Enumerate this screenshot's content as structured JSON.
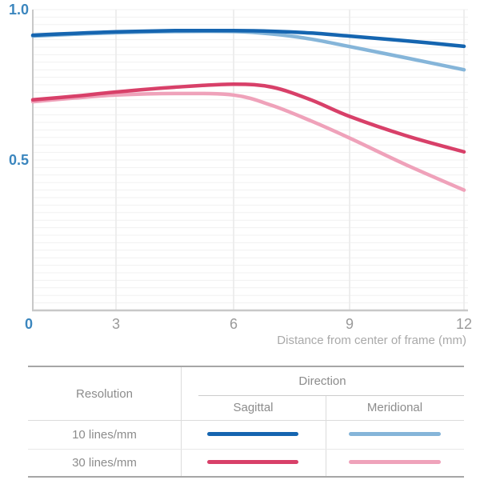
{
  "chart_data": {
    "type": "line",
    "xlabel": "Distance from center of frame (mm)",
    "ylabel": "",
    "xlim": [
      0,
      12
    ],
    "ylim": [
      0,
      1.0
    ],
    "x_ticks": [
      {
        "label": "0",
        "value": 0
      },
      {
        "label": "3",
        "value": 3
      },
      {
        "label": "6",
        "value": 6
      },
      {
        "label": "9",
        "value": 9
      },
      {
        "label": "12",
        "value": 12
      }
    ],
    "y_ticks": [
      {
        "label": "1.0",
        "value": 1.0
      },
      {
        "label": "0.5",
        "value": 0.5
      }
    ],
    "grid": {
      "horizontal_step": 0.025,
      "vertical_lines_at": [
        3,
        6,
        9,
        12
      ],
      "grid_on": true
    },
    "legend_position": "table-below",
    "x": [
      0,
      1.5,
      3,
      4.5,
      6,
      7,
      8,
      9,
      10.5,
      12
    ],
    "series": [
      {
        "name": "10 lines/mm Sagittal",
        "color": "#1565b0",
        "values": [
          0.915,
          0.921,
          0.926,
          0.93,
          0.93,
          0.928,
          0.922,
          0.912,
          0.896,
          0.878
        ]
      },
      {
        "name": "10 lines/mm Meridional",
        "color": "#85b5d9",
        "values": [
          0.912,
          0.918,
          0.923,
          0.927,
          0.927,
          0.919,
          0.902,
          0.877,
          0.839,
          0.8
        ]
      },
      {
        "name": "30 lines/mm Sagittal",
        "color": "#d84069",
        "values": [
          0.7,
          0.712,
          0.726,
          0.742,
          0.752,
          0.742,
          0.7,
          0.645,
          0.58,
          0.527
        ]
      },
      {
        "name": "30 lines/mm Meridional",
        "color": "#efa2ba",
        "values": [
          0.694,
          0.706,
          0.716,
          0.721,
          0.716,
          0.681,
          0.63,
          0.573,
          0.483,
          0.4
        ]
      }
    ],
    "colors": {
      "y_tick": "#3b86be",
      "origin_tick": "#3b86be",
      "x_tick": "#9a9a9a",
      "axis_line": "#c8c8c8",
      "grid_fine": "#f1f1f1",
      "grid_vertical": "#e9e9e9",
      "axis_title": "#a9a9a9"
    }
  },
  "table": {
    "headers": {
      "resolution": "Resolution",
      "direction": "Direction",
      "sagittal": "Sagittal",
      "meridional": "Meridional"
    },
    "rows": [
      {
        "label": "10 lines/mm",
        "sagittal_color": "#1565b0",
        "meridional_color": "#85b5d9"
      },
      {
        "label": "30 lines/mm",
        "sagittal_color": "#d84069",
        "meridional_color": "#efa2ba"
      }
    ]
  }
}
